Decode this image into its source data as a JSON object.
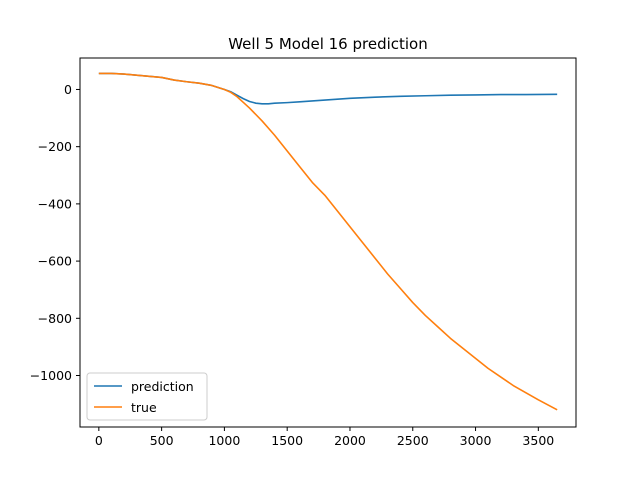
{
  "chart_data": {
    "type": "line",
    "title": "Well 5 Model 16 prediction",
    "xlabel": "",
    "ylabel": "",
    "xlim": [
      -150,
      3800
    ],
    "ylim": [
      -1180,
      110
    ],
    "xticks": [
      0,
      500,
      1000,
      1500,
      2000,
      2500,
      3000,
      3500
    ],
    "yticks": [
      0,
      -200,
      -400,
      -600,
      -800,
      -1000
    ],
    "xtick_labels": [
      "0",
      "500",
      "1000",
      "1500",
      "2000",
      "2500",
      "3000",
      "3500"
    ],
    "ytick_labels": [
      "0",
      "−200",
      "−400",
      "−600",
      "−800",
      "−1000"
    ],
    "grid": false,
    "legend_position": "lower-left",
    "series": [
      {
        "name": "prediction",
        "color": "#1f77b4",
        "x": [
          0,
          100,
          200,
          300,
          400,
          500,
          600,
          700,
          800,
          900,
          1000,
          1050,
          1100,
          1150,
          1200,
          1250,
          1300,
          1350,
          1400,
          1500,
          1600,
          1700,
          1800,
          2000,
          2200,
          2400,
          2600,
          2800,
          3000,
          3200,
          3400,
          3650
        ],
        "y": [
          56,
          56,
          54,
          50,
          46,
          42,
          33,
          27,
          22,
          14,
          0,
          -8,
          -20,
          -32,
          -42,
          -48,
          -50,
          -50,
          -48,
          -46,
          -43,
          -40,
          -37,
          -31,
          -27,
          -24,
          -22,
          -20,
          -19,
          -18,
          -18,
          -17
        ]
      },
      {
        "name": "true",
        "color": "#ff7f0e",
        "x": [
          0,
          100,
          200,
          300,
          400,
          500,
          600,
          700,
          800,
          900,
          1000,
          1050,
          1100,
          1150,
          1200,
          1300,
          1400,
          1500,
          1600,
          1700,
          1800,
          1900,
          2000,
          2100,
          2200,
          2300,
          2400,
          2500,
          2600,
          2700,
          2800,
          2900,
          3000,
          3100,
          3200,
          3300,
          3400,
          3500,
          3650
        ],
        "y": [
          56,
          56,
          54,
          50,
          46,
          42,
          33,
          27,
          22,
          14,
          0,
          -10,
          -25,
          -45,
          -65,
          -110,
          -160,
          -215,
          -270,
          -325,
          -370,
          -425,
          -480,
          -535,
          -590,
          -645,
          -695,
          -745,
          -790,
          -830,
          -870,
          -905,
          -940,
          -975,
          -1005,
          -1035,
          -1060,
          -1085,
          -1120
        ]
      }
    ]
  }
}
